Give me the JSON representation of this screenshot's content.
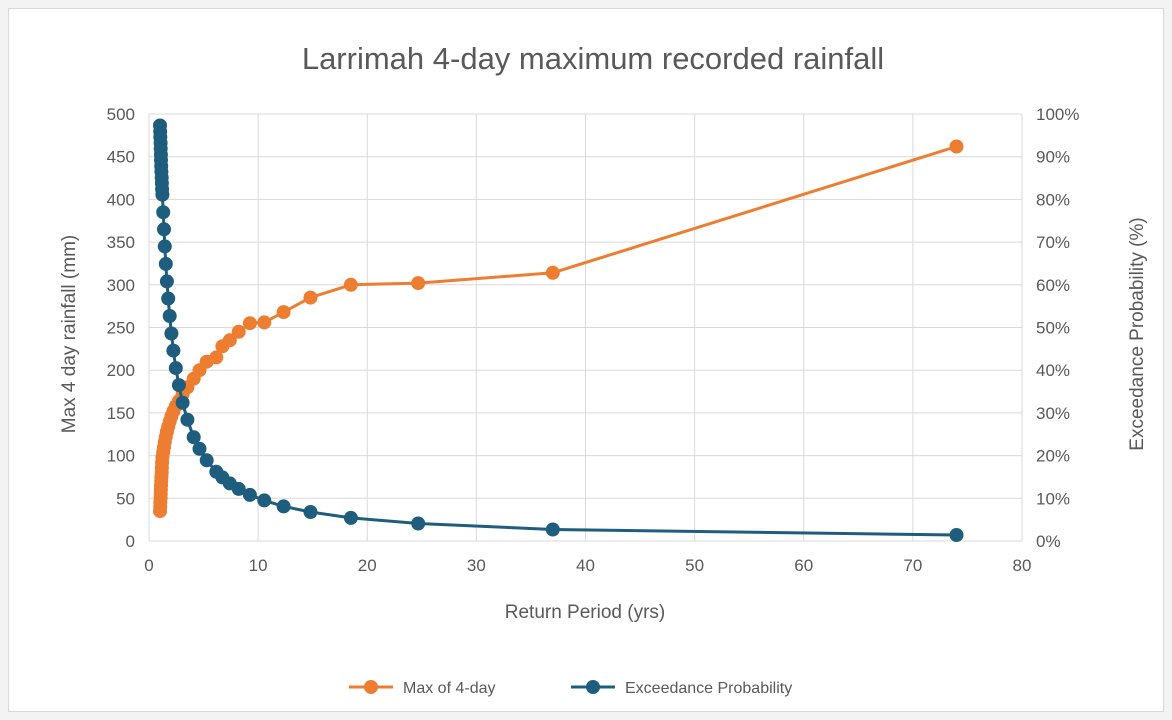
{
  "chart_data": {
    "type": "scatter",
    "title": "Larrimah 4-day maximum recorded rainfall",
    "xlabel": "Return Period (yrs)",
    "ylabel": "Max 4 day rainfall (mm)",
    "y2label": "Exceedance Probability (%)",
    "xlim": [
      0,
      80
    ],
    "ylim": [
      0,
      500
    ],
    "y2lim": [
      0,
      1
    ],
    "xticks": [
      "0",
      "10",
      "20",
      "30",
      "40",
      "50",
      "60",
      "70",
      "80"
    ],
    "yticks": [
      "0",
      "50",
      "100",
      "150",
      "200",
      "250",
      "300",
      "350",
      "400",
      "450",
      "500"
    ],
    "y2ticks": [
      "0%",
      "10%",
      "20%",
      "30%",
      "40%",
      "50%",
      "60%",
      "70%",
      "80%",
      "90%",
      "100%"
    ],
    "grid": true,
    "legend_position": "bottom",
    "series": [
      {
        "name": "Max of 4-day",
        "axis": "left",
        "color": "#ed7d31",
        "points": [
          [
            1.01,
            35
          ],
          [
            1.03,
            40
          ],
          [
            1.04,
            45
          ],
          [
            1.06,
            50
          ],
          [
            1.07,
            55
          ],
          [
            1.09,
            60
          ],
          [
            1.1,
            65
          ],
          [
            1.12,
            70
          ],
          [
            1.14,
            75
          ],
          [
            1.16,
            80
          ],
          [
            1.18,
            86
          ],
          [
            1.2,
            92
          ],
          [
            1.23,
            98
          ],
          [
            1.3,
            104
          ],
          [
            1.37,
            110
          ],
          [
            1.45,
            116
          ],
          [
            1.54,
            122
          ],
          [
            1.64,
            128
          ],
          [
            1.76,
            134
          ],
          [
            1.9,
            140
          ],
          [
            2.05,
            146
          ],
          [
            2.24,
            152
          ],
          [
            2.46,
            158
          ],
          [
            2.74,
            164
          ],
          [
            3.08,
            172
          ],
          [
            3.52,
            180
          ],
          [
            4.1,
            190
          ],
          [
            4.63,
            200
          ],
          [
            5.29,
            210
          ],
          [
            6.17,
            215
          ],
          [
            6.73,
            228
          ],
          [
            7.4,
            235
          ],
          [
            8.22,
            245
          ],
          [
            9.25,
            255
          ],
          [
            10.57,
            256
          ],
          [
            12.33,
            268
          ],
          [
            14.8,
            285
          ],
          [
            18.5,
            300
          ],
          [
            24.67,
            302
          ],
          [
            37,
            314
          ],
          [
            74,
            462
          ]
        ]
      },
      {
        "name": "Exceedance Probability",
        "axis": "right",
        "color": "#1f5d7e",
        "points": [
          [
            1.01,
            0.973
          ],
          [
            1.03,
            0.959
          ],
          [
            1.04,
            0.946
          ],
          [
            1.06,
            0.932
          ],
          [
            1.07,
            0.919
          ],
          [
            1.09,
            0.905
          ],
          [
            1.1,
            0.892
          ],
          [
            1.12,
            0.878
          ],
          [
            1.14,
            0.865
          ],
          [
            1.16,
            0.851
          ],
          [
            1.18,
            0.838
          ],
          [
            1.2,
            0.824
          ],
          [
            1.23,
            0.811
          ],
          [
            1.3,
            0.77
          ],
          [
            1.37,
            0.73
          ],
          [
            1.45,
            0.69
          ],
          [
            1.54,
            0.649
          ],
          [
            1.64,
            0.608
          ],
          [
            1.76,
            0.568
          ],
          [
            1.9,
            0.527
          ],
          [
            2.05,
            0.486
          ],
          [
            2.24,
            0.446
          ],
          [
            2.46,
            0.405
          ],
          [
            2.74,
            0.365
          ],
          [
            3.08,
            0.324
          ],
          [
            3.52,
            0.284
          ],
          [
            4.1,
            0.243
          ],
          [
            4.63,
            0.216
          ],
          [
            5.29,
            0.189
          ],
          [
            6.17,
            0.162
          ],
          [
            6.73,
            0.149
          ],
          [
            7.4,
            0.135
          ],
          [
            8.22,
            0.122
          ],
          [
            9.25,
            0.108
          ],
          [
            10.57,
            0.095
          ],
          [
            12.33,
            0.081
          ],
          [
            14.8,
            0.068
          ],
          [
            18.5,
            0.054
          ],
          [
            24.67,
            0.041
          ],
          [
            37,
            0.027
          ],
          [
            74,
            0.014
          ]
        ]
      }
    ]
  }
}
